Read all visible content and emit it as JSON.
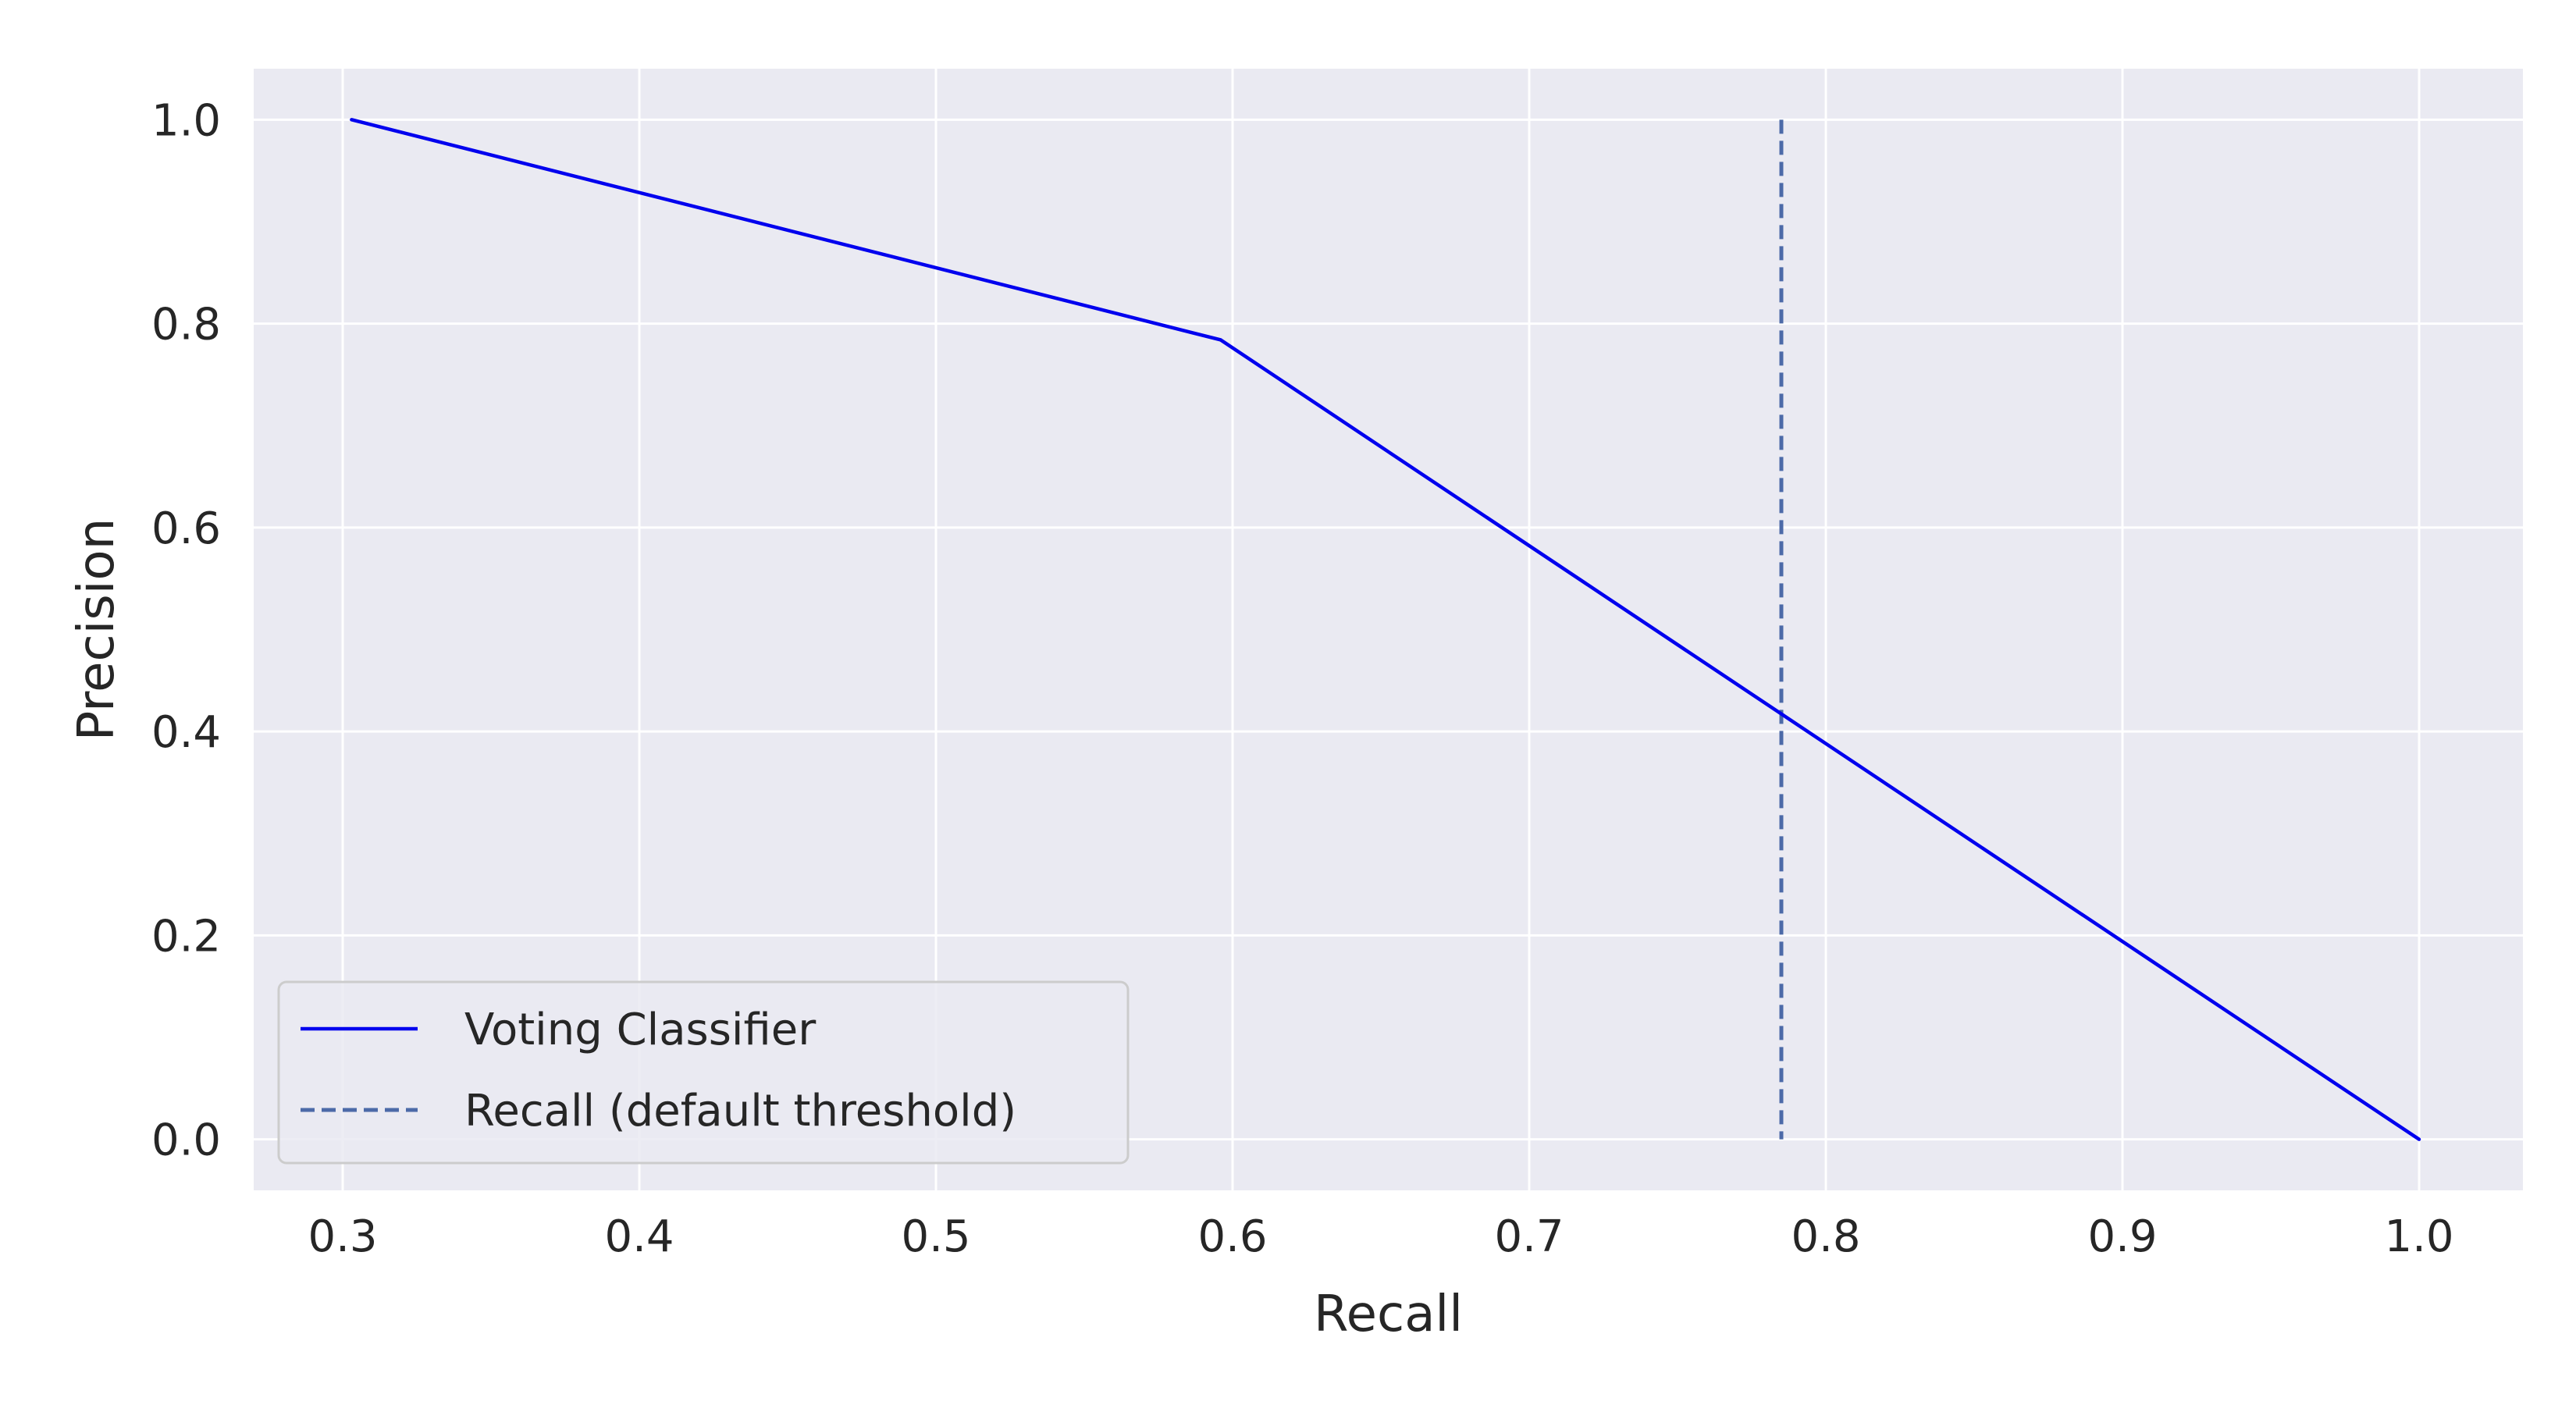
{
  "chart_data": {
    "type": "line",
    "xlabel": "Recall",
    "ylabel": "Precision",
    "xlim": [
      0.27,
      1.035
    ],
    "ylim": [
      -0.05,
      1.05
    ],
    "xticks": [
      0.3,
      0.4,
      0.5,
      0.6,
      0.7,
      0.8,
      0.9,
      1.0
    ],
    "xtick_labels": [
      "0.3",
      "0.4",
      "0.5",
      "0.6",
      "0.7",
      "0.8",
      "0.9",
      "1.0"
    ],
    "yticks": [
      0.0,
      0.2,
      0.4,
      0.6,
      0.8,
      1.0
    ],
    "ytick_labels": [
      "0.0",
      "0.2",
      "0.4",
      "0.6",
      "0.8",
      "1.0"
    ],
    "grid": true,
    "legend_position": "lower-left",
    "background_color": "#eaeaf2",
    "grid_color": "#ffffff",
    "series": [
      {
        "name": "Voting Classifier",
        "style": "solid",
        "color": "#0000ee",
        "x": [
          0.303,
          0.596,
          1.0
        ],
        "y": [
          1.0,
          0.784,
          0.0
        ]
      }
    ],
    "vlines": [
      {
        "name": "Recall (default threshold)",
        "style": "dashed",
        "color": "#4c6aa8",
        "x": 0.785,
        "ymin": 0.0,
        "ymax": 1.0
      }
    ]
  }
}
